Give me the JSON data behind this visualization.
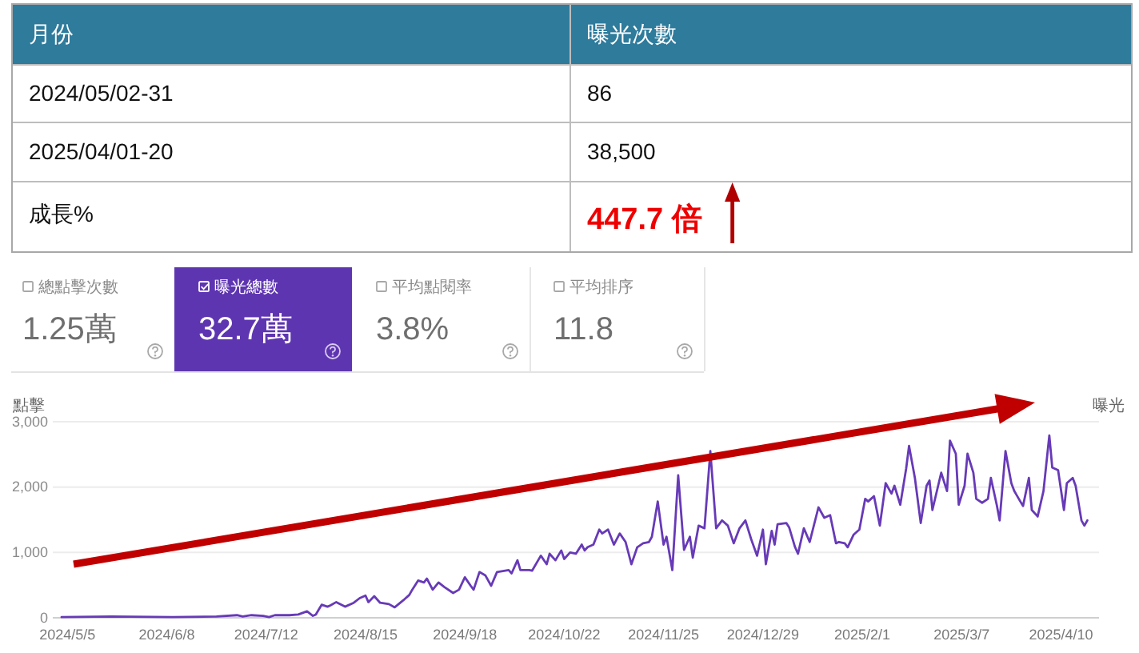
{
  "chart_data": [
    {
      "type": "other",
      "xlabel": "月份",
      "ylabel": "曝光次數",
      "categories": [
        "2024/05/02-31",
        "2025/04/01-20"
      ],
      "value_labels": [
        "86",
        "38,500"
      ],
      "annotations": [
        "成長%",
        "447.7 倍"
      ]
    },
    {
      "type": "other",
      "annotations": [
        "總點擊次數",
        "1.25萬",
        "曝光總數",
        "32.7萬",
        "平均點閱率",
        "3.8%",
        "平均排序",
        "11.8"
      ]
    },
    {
      "type": "line",
      "ylabel": "點擊",
      "y2label": "曝光",
      "grid": "y",
      "xlim": [
        "2024-04-30",
        "2025-04-23"
      ],
      "xticks": [
        {
          "value": "2024-05-05",
          "label": "2024/5/5"
        },
        {
          "value": "2024-06-08",
          "label": "2024/6/8"
        },
        {
          "value": "2024-07-12",
          "label": "2024/7/12"
        },
        {
          "value": "2024-08-15",
          "label": "2024/8/15"
        },
        {
          "value": "2024-09-18",
          "label": "2024/9/18"
        },
        {
          "value": "2024-10-22",
          "label": "2024/10/22"
        },
        {
          "value": "2024-11-25",
          "label": "2024/11/25"
        },
        {
          "value": "2024-12-29",
          "label": "2024/12/29"
        },
        {
          "value": "2025-02-01",
          "label": "2025/2/1"
        },
        {
          "value": "2025-03-07",
          "label": "2025/3/7"
        },
        {
          "value": "2025-04-10",
          "label": "2025/4/10"
        }
      ],
      "ylim": [
        0,
        3000
      ],
      "yticks": [
        0,
        {
          "value": 1000,
          "label": "1,000"
        },
        {
          "value": 2000,
          "label": "2,000"
        },
        {
          "value": 3000,
          "label": "3,000"
        }
      ],
      "x": [
        "2024-05-03",
        "2024-05-20",
        "2024-06-10",
        "2024-06-25",
        "2024-07-02",
        "2024-07-04",
        "2024-07-07",
        "2024-07-11",
        "2024-07-13",
        "2024-07-15",
        "2024-07-20",
        "2024-07-23",
        "2024-07-26",
        "2024-07-28",
        "2024-07-29",
        "2024-07-31",
        "2024-08-02",
        "2024-08-03",
        "2024-08-05",
        "2024-08-08",
        "2024-08-11",
        "2024-08-13",
        "2024-08-15",
        "2024-08-16",
        "2024-08-18",
        "2024-08-20",
        "2024-08-23",
        "2024-08-25",
        "2024-08-28",
        "2024-08-30",
        "2024-08-31",
        "2024-09-02",
        "2024-09-04",
        "2024-09-05",
        "2024-09-07",
        "2024-09-09",
        "2024-09-11",
        "2024-09-14",
        "2024-09-16",
        "2024-09-18",
        "2024-09-20",
        "2024-09-21",
        "2024-09-23",
        "2024-09-25",
        "2024-09-27",
        "2024-09-29",
        "2024-10-03",
        "2024-10-04",
        "2024-10-06",
        "2024-10-07",
        "2024-10-10",
        "2024-10-11",
        "2024-10-14",
        "2024-10-16",
        "2024-10-17",
        "2024-10-19",
        "2024-10-21",
        "2024-10-22",
        "2024-10-24",
        "2024-10-26",
        "2024-10-28",
        "2024-10-29",
        "2024-10-30",
        "2024-11-01",
        "2024-11-03",
        "2024-11-04",
        "2024-11-06",
        "2024-11-08",
        "2024-11-10",
        "2024-11-12",
        "2024-11-14",
        "2024-11-16",
        "2024-11-18",
        "2024-11-20",
        "2024-11-21",
        "2024-11-23",
        "2024-11-25",
        "2024-11-26",
        "2024-11-28",
        "2024-11-30",
        "2024-12-02",
        "2024-12-04",
        "2024-12-05",
        "2024-12-07",
        "2024-12-09",
        "2024-12-11",
        "2024-12-13",
        "2024-12-15",
        "2024-12-17",
        "2024-12-19",
        "2024-12-21",
        "2024-12-23",
        "2024-12-25",
        "2024-12-27",
        "2024-12-29",
        "2024-12-30",
        "2025-01-01",
        "2025-01-02",
        "2025-01-03",
        "2025-01-06",
        "2025-01-07",
        "2025-01-09",
        "2025-01-10",
        "2025-01-12",
        "2025-01-14",
        "2025-01-17",
        "2025-01-19",
        "2025-01-21",
        "2025-01-23",
        "2025-01-24",
        "2025-01-26",
        "2025-01-27",
        "2025-01-29",
        "2025-01-31",
        "2025-02-02",
        "2025-02-03",
        "2025-02-05",
        "2025-02-07",
        "2025-02-09",
        "2025-02-11",
        "2025-02-12",
        "2025-02-14",
        "2025-02-16",
        "2025-02-17",
        "2025-02-19",
        "2025-02-21",
        "2025-02-23",
        "2025-02-24",
        "2025-02-25",
        "2025-02-28",
        "2025-03-02",
        "2025-03-03",
        "2025-03-05",
        "2025-03-06",
        "2025-03-08",
        "2025-03-09",
        "2025-03-11",
        "2025-03-12",
        "2025-03-14",
        "2025-03-16",
        "2025-03-17",
        "2025-03-19",
        "2025-03-20",
        "2025-03-22",
        "2025-03-24",
        "2025-03-25",
        "2025-03-28",
        "2025-03-30",
        "2025-03-31",
        "2025-04-02",
        "2025-04-04",
        "2025-04-06",
        "2025-04-07",
        "2025-04-09",
        "2025-04-11",
        "2025-04-12",
        "2025-04-14",
        "2025-04-15",
        "2025-04-17",
        "2025-04-18",
        "2025-04-19"
      ],
      "series": [
        {
          "color": "#673ab7",
          "values": [
            10,
            20,
            10,
            20,
            40,
            20,
            40,
            30,
            10,
            40,
            40,
            50,
            100,
            30,
            50,
            200,
            170,
            190,
            240,
            170,
            230,
            300,
            340,
            240,
            330,
            230,
            210,
            160,
            270,
            350,
            430,
            570,
            540,
            600,
            430,
            540,
            470,
            380,
            430,
            620,
            490,
            430,
            700,
            650,
            490,
            700,
            730,
            680,
            880,
            730,
            730,
            720,
            950,
            820,
            980,
            880,
            1030,
            900,
            1000,
            980,
            1120,
            1030,
            1080,
            1120,
            1350,
            1290,
            1350,
            1120,
            1290,
            1160,
            820,
            1080,
            1140,
            1160,
            1240,
            1780,
            1120,
            1240,
            730,
            2180,
            1040,
            1240,
            920,
            1410,
            1370,
            2550,
            1370,
            1490,
            1410,
            1140,
            1370,
            1490,
            1200,
            950,
            1350,
            820,
            1330,
            1120,
            1430,
            1450,
            1380,
            1080,
            980,
            1370,
            1160,
            1690,
            1530,
            1570,
            1140,
            1160,
            1140,
            1080,
            1270,
            1350,
            1820,
            1780,
            1860,
            1410,
            2060,
            1900,
            2020,
            1730,
            2280,
            2630,
            2140,
            1450,
            2020,
            2100,
            1650,
            2220,
            1940,
            2710,
            2510,
            1730,
            2020,
            2510,
            2220,
            1820,
            1760,
            1820,
            2140,
            1730,
            1490,
            2550,
            2060,
            1940,
            1710,
            2140,
            1650,
            1550,
            1940,
            2790,
            2300,
            2260,
            1650,
            2060,
            2140,
            2020,
            1490,
            1410,
            1490
          ]
        }
      ]
    }
  ]
}
